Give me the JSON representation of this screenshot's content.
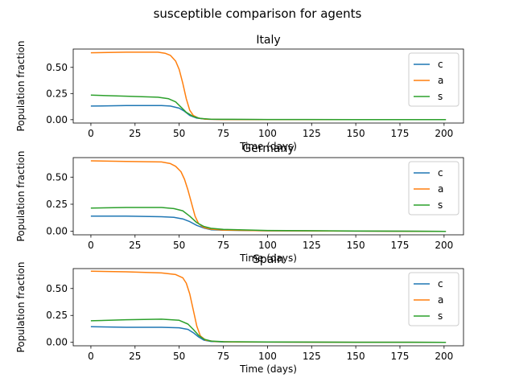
{
  "figure_title": "susceptible comparison for agents",
  "colors": {
    "c": "#1f77b4",
    "a": "#ff7f0e",
    "s": "#2ca02c"
  },
  "chart_data": [
    {
      "type": "line",
      "title": "Italy",
      "xlabel": "Time (days)",
      "ylabel": "Population fraction",
      "xlim": [
        -10,
        211
      ],
      "ylim": [
        -0.032,
        0.675
      ],
      "xticks": [
        0,
        25,
        50,
        75,
        100,
        125,
        150,
        175,
        200
      ],
      "yticks": [
        0.0,
        0.25,
        0.5
      ],
      "ytick_labels": [
        "0.00",
        "0.25",
        "0.50"
      ],
      "legend": "upper-right",
      "grid": false,
      "series": [
        {
          "name": "c",
          "color": "#1f77b4",
          "points": [
            [
              0,
              0.13
            ],
            [
              20,
              0.135
            ],
            [
              40,
              0.135
            ],
            [
              45,
              0.13
            ],
            [
              50,
              0.11
            ],
            [
              53,
              0.08
            ],
            [
              56,
              0.04
            ],
            [
              60,
              0.015
            ],
            [
              65,
              0.005
            ],
            [
              75,
              0.002
            ],
            [
              100,
              0.001
            ],
            [
              150,
              0.0005
            ],
            [
              201,
              0.0
            ]
          ]
        },
        {
          "name": "a",
          "color": "#ff7f0e",
          "points": [
            [
              0,
              0.64
            ],
            [
              20,
              0.645
            ],
            [
              38,
              0.645
            ],
            [
              42,
              0.635
            ],
            [
              45,
              0.615
            ],
            [
              48,
              0.56
            ],
            [
              50,
              0.48
            ],
            [
              52,
              0.35
            ],
            [
              54,
              0.2
            ],
            [
              56,
              0.09
            ],
            [
              58,
              0.04
            ],
            [
              61,
              0.015
            ],
            [
              65,
              0.005
            ],
            [
              75,
              0.002
            ],
            [
              100,
              0.001
            ],
            [
              150,
              0.0005
            ],
            [
              201,
              0.0
            ]
          ]
        },
        {
          "name": "s",
          "color": "#2ca02c",
          "points": [
            [
              0,
              0.235
            ],
            [
              20,
              0.225
            ],
            [
              38,
              0.215
            ],
            [
              44,
              0.2
            ],
            [
              48,
              0.17
            ],
            [
              51,
              0.12
            ],
            [
              54,
              0.07
            ],
            [
              58,
              0.03
            ],
            [
              62,
              0.012
            ],
            [
              68,
              0.005
            ],
            [
              80,
              0.003
            ],
            [
              100,
              0.002
            ],
            [
              150,
              0.001
            ],
            [
              201,
              0.0
            ]
          ]
        }
      ]
    },
    {
      "type": "line",
      "title": "Germany",
      "xlabel": "Time (days)",
      "ylabel": "Population fraction",
      "xlim": [
        -10,
        211
      ],
      "ylim": [
        -0.032,
        0.68
      ],
      "xticks": [
        0,
        25,
        50,
        75,
        100,
        125,
        150,
        175,
        200
      ],
      "yticks": [
        0.0,
        0.25,
        0.5
      ],
      "ytick_labels": [
        "0.00",
        "0.25",
        "0.50"
      ],
      "legend": "upper-right",
      "grid": false,
      "series": [
        {
          "name": "c",
          "color": "#1f77b4",
          "points": [
            [
              0,
              0.14
            ],
            [
              20,
              0.14
            ],
            [
              40,
              0.135
            ],
            [
              47,
              0.13
            ],
            [
              52,
              0.115
            ],
            [
              56,
              0.09
            ],
            [
              60,
              0.055
            ],
            [
              64,
              0.03
            ],
            [
              68,
              0.015
            ],
            [
              75,
              0.01
            ],
            [
              100,
              0.005
            ],
            [
              150,
              0.002
            ],
            [
              201,
              0.0
            ]
          ]
        },
        {
          "name": "a",
          "color": "#ff7f0e",
          "points": [
            [
              0,
              0.65
            ],
            [
              20,
              0.645
            ],
            [
              40,
              0.64
            ],
            [
              45,
              0.625
            ],
            [
              48,
              0.6
            ],
            [
              51,
              0.55
            ],
            [
              53,
              0.48
            ],
            [
              55,
              0.38
            ],
            [
              57,
              0.26
            ],
            [
              59,
              0.14
            ],
            [
              61,
              0.07
            ],
            [
              64,
              0.035
            ],
            [
              68,
              0.02
            ],
            [
              75,
              0.012
            ],
            [
              100,
              0.005
            ],
            [
              150,
              0.002
            ],
            [
              201,
              0.0
            ]
          ]
        },
        {
          "name": "s",
          "color": "#2ca02c",
          "points": [
            [
              0,
              0.215
            ],
            [
              20,
              0.22
            ],
            [
              40,
              0.22
            ],
            [
              47,
              0.21
            ],
            [
              52,
              0.19
            ],
            [
              56,
              0.14
            ],
            [
              60,
              0.08
            ],
            [
              64,
              0.045
            ],
            [
              68,
              0.028
            ],
            [
              75,
              0.018
            ],
            [
              100,
              0.008
            ],
            [
              150,
              0.003
            ],
            [
              201,
              0.0
            ]
          ]
        }
      ]
    },
    {
      "type": "line",
      "title": "Spain",
      "xlabel": "Time (days)",
      "ylabel": "Population fraction",
      "xlim": [
        -10,
        211
      ],
      "ylim": [
        -0.032,
        0.685
      ],
      "xticks": [
        0,
        25,
        50,
        75,
        100,
        125,
        150,
        175,
        200
      ],
      "yticks": [
        0.0,
        0.25,
        0.5
      ],
      "ytick_labels": [
        "0.00",
        "0.25",
        "0.50"
      ],
      "legend": "upper-right",
      "grid": false,
      "series": [
        {
          "name": "c",
          "color": "#1f77b4",
          "points": [
            [
              0,
              0.145
            ],
            [
              20,
              0.14
            ],
            [
              40,
              0.14
            ],
            [
              50,
              0.135
            ],
            [
              55,
              0.12
            ],
            [
              58,
              0.09
            ],
            [
              61,
              0.05
            ],
            [
              64,
              0.02
            ],
            [
              68,
              0.008
            ],
            [
              75,
              0.004
            ],
            [
              100,
              0.002
            ],
            [
              150,
              0.001
            ],
            [
              201,
              0.0
            ]
          ]
        },
        {
          "name": "a",
          "color": "#ff7f0e",
          "points": [
            [
              0,
              0.66
            ],
            [
              20,
              0.655
            ],
            [
              40,
              0.645
            ],
            [
              48,
              0.63
            ],
            [
              52,
              0.6
            ],
            [
              54,
              0.55
            ],
            [
              56,
              0.45
            ],
            [
              58,
              0.3
            ],
            [
              60,
              0.15
            ],
            [
              62,
              0.06
            ],
            [
              65,
              0.02
            ],
            [
              70,
              0.008
            ],
            [
              80,
              0.004
            ],
            [
              100,
              0.002
            ],
            [
              150,
              0.001
            ],
            [
              201,
              0.0
            ]
          ]
        },
        {
          "name": "s",
          "color": "#2ca02c",
          "points": [
            [
              0,
              0.2
            ],
            [
              20,
              0.21
            ],
            [
              40,
              0.215
            ],
            [
              50,
              0.205
            ],
            [
              55,
              0.17
            ],
            [
              58,
              0.12
            ],
            [
              61,
              0.065
            ],
            [
              64,
              0.03
            ],
            [
              68,
              0.012
            ],
            [
              75,
              0.006
            ],
            [
              100,
              0.003
            ],
            [
              150,
              0.001
            ],
            [
              201,
              0.0
            ]
          ]
        }
      ]
    }
  ]
}
